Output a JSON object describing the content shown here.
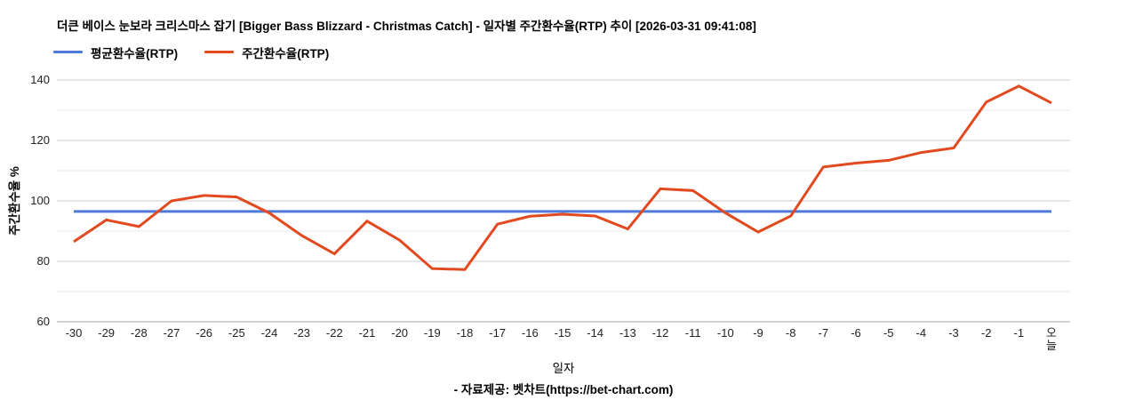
{
  "footer": {
    "source": "- 자료제공: 벳차트(https://bet-chart.com)"
  },
  "colors": {
    "average_line": "#4d7ad6",
    "weekly_line": "#e3491f",
    "grid_major": "#cccccc",
    "grid_minor": "#e8e8e8",
    "axis_line": "#a6a6a6",
    "tick_text": "#222222"
  },
  "chart_data": {
    "type": "line",
    "title": "더큰 베이스 눈보라 크리스마스 잡기 [Bigger Bass Blizzard - Christmas Catch] - 일자별 주간환수율(RTP) 추이 [2026-03-31 09:41:08]",
    "xlabel": "일자",
    "ylabel": "주간환수율 %",
    "ylim": [
      60,
      140
    ],
    "yticks_labeled": [
      60,
      80,
      100,
      120,
      140
    ],
    "grid_minor_step": 10,
    "grid": "horizontal",
    "legend_position": "top-left",
    "categories": [
      "-30",
      "-29",
      "-28",
      "-27",
      "-26",
      "-25",
      "-24",
      "-23",
      "-22",
      "-21",
      "-20",
      "-19",
      "-18",
      "-17",
      "-16",
      "-15",
      "-14",
      "-13",
      "-12",
      "-11",
      "-10",
      "-9",
      "-8",
      "-7",
      "-6",
      "-5",
      "-4",
      "-3",
      "-2",
      "-1",
      "오늘"
    ],
    "series": [
      {
        "name": "평균환수율(RTP)",
        "color": "#4d7ad6",
        "values": [
          96.5,
          96.5,
          96.5,
          96.5,
          96.5,
          96.5,
          96.5,
          96.5,
          96.5,
          96.5,
          96.5,
          96.5,
          96.5,
          96.5,
          96.5,
          96.5,
          96.5,
          96.5,
          96.5,
          96.5,
          96.5,
          96.5,
          96.5,
          96.5,
          96.5,
          96.5,
          96.5,
          96.5,
          96.5,
          96.5,
          96.5
        ]
      },
      {
        "name": "주간환수율(RTP)",
        "color": "#e3491f",
        "values": [
          86.5,
          93.7,
          91.5,
          100,
          101.8,
          101.3,
          96,
          88.5,
          82.5,
          93.3,
          87,
          77.6,
          77.3,
          92.3,
          94.9,
          95.6,
          95,
          90.7,
          104,
          103.4,
          96,
          89.7,
          95,
          111.2,
          112.5,
          113.4,
          116,
          117.5,
          132.7,
          138,
          132.4
        ]
      }
    ]
  }
}
